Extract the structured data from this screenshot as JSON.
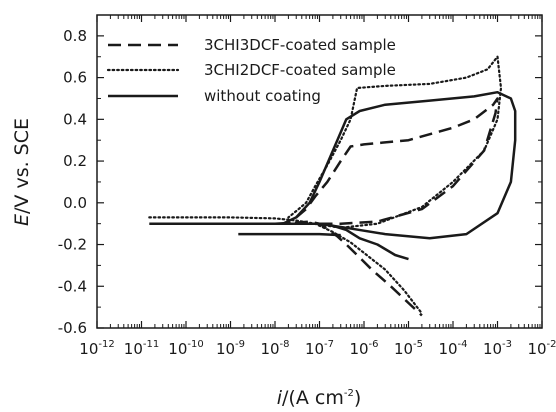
{
  "chart_data": {
    "type": "line",
    "title": "",
    "xlabel": {
      "var": "i",
      "text": "/(A cm",
      "sup": "-2",
      "close": ")"
    },
    "ylabel": {
      "var": "E",
      "text": "/V vs. SCE"
    },
    "x_scale": "log",
    "xlim": [
      1e-12,
      0.01
    ],
    "ylim": [
      -0.6,
      0.9
    ],
    "x_ticks": [
      {
        "base": "10",
        "exp": "-12"
      },
      {
        "base": "10",
        "exp": "-11"
      },
      {
        "base": "10",
        "exp": "-10"
      },
      {
        "base": "10",
        "exp": "-9"
      },
      {
        "base": "10",
        "exp": "-8"
      },
      {
        "base": "10",
        "exp": "-7"
      },
      {
        "base": "10",
        "exp": "-6"
      },
      {
        "base": "10",
        "exp": "-5"
      },
      {
        "base": "10",
        "exp": "-4"
      },
      {
        "base": "10",
        "exp": "-3"
      },
      {
        "base": "10",
        "exp": "-2"
      }
    ],
    "y_ticks": [
      "-0.6",
      "-0.4",
      "-0.2",
      "0.0",
      "0.2",
      "0.4",
      "0.6",
      "0.8"
    ],
    "grid": false,
    "legend_position": "top-left",
    "series": [
      {
        "name": "3CHI3DCF-coated sample",
        "style": "dashed",
        "color": "#1a1a1a",
        "points": [
          [
            2e-11,
            -0.1
          ],
          [
            1e-09,
            -0.1
          ],
          [
            1e-08,
            -0.1
          ],
          [
            3e-08,
            -0.095
          ],
          [
            6e-08,
            -0.09
          ],
          [
            1e-07,
            -0.1
          ],
          [
            1.6e-07,
            -0.13
          ],
          [
            2.5e-07,
            -0.16
          ],
          [
            4e-07,
            -0.2
          ],
          [
            7e-07,
            -0.25
          ],
          [
            1.5e-06,
            -0.32
          ],
          [
            4e-06,
            -0.4
          ],
          [
            1e-05,
            -0.48
          ],
          [
            2e-05,
            -0.54
          ]
        ],
        "return_branch": [
          [
            1e-07,
            -0.1
          ],
          [
            3e-07,
            -0.1
          ],
          [
            2e-06,
            -0.09
          ],
          [
            2e-05,
            -0.03
          ],
          [
            0.0001,
            0.08
          ],
          [
            0.0005,
            0.25
          ],
          [
            0.0009,
            0.43
          ],
          [
            0.001,
            0.5
          ],
          [
            0.0008,
            0.47
          ],
          [
            0.0003,
            0.4
          ],
          [
            0.0001,
            0.36
          ],
          [
            1e-05,
            0.3
          ],
          [
            1e-06,
            0.28
          ],
          [
            5e-07,
            0.27
          ],
          [
            3e-07,
            0.2
          ],
          [
            1.5e-07,
            0.1
          ],
          [
            8e-08,
            0.03
          ],
          [
            5e-08,
            -0.03
          ],
          [
            3e-08,
            -0.07
          ],
          [
            2e-08,
            -0.1
          ]
        ]
      },
      {
        "name": "3CHI2DCF-coated sample",
        "style": "dotted",
        "color": "#1a1a1a",
        "points": [
          [
            1.5e-11,
            -0.07
          ],
          [
            1e-09,
            -0.07
          ],
          [
            1e-08,
            -0.075
          ],
          [
            3e-08,
            -0.085
          ],
          [
            8e-08,
            -0.1
          ],
          [
            2e-07,
            -0.14
          ],
          [
            5e-07,
            -0.19
          ],
          [
            1e-06,
            -0.24
          ],
          [
            3e-06,
            -0.32
          ],
          [
            8e-06,
            -0.42
          ],
          [
            2e-05,
            -0.53
          ]
        ],
        "return_branch": [
          [
            8e-08,
            -0.1
          ],
          [
            3e-07,
            -0.12
          ],
          [
            2e-06,
            -0.1
          ],
          [
            2e-05,
            -0.02
          ],
          [
            0.0001,
            0.1
          ],
          [
            0.0005,
            0.25
          ],
          [
            0.001,
            0.4
          ],
          [
            0.0012,
            0.55
          ],
          [
            0.001,
            0.7
          ],
          [
            0.0006,
            0.64
          ],
          [
            0.0002,
            0.6
          ],
          [
            3e-05,
            0.57
          ],
          [
            3e-06,
            0.56
          ],
          [
            7e-07,
            0.55
          ],
          [
            5e-07,
            0.4
          ],
          [
            3e-07,
            0.3
          ],
          [
            1.5e-07,
            0.18
          ],
          [
            8e-08,
            0.08
          ],
          [
            5e-08,
            0.0
          ],
          [
            3e-08,
            -0.04
          ],
          [
            2e-08,
            -0.07
          ]
        ]
      },
      {
        "name": "without coating",
        "style": "solid",
        "color": "#1a1a1a",
        "points": [
          [
            1.5e-11,
            -0.1
          ],
          [
            1e-09,
            -0.1
          ],
          [
            1e-08,
            -0.1
          ],
          [
            1e-07,
            -0.1
          ],
          [
            2e-07,
            -0.11
          ],
          [
            4e-07,
            -0.13
          ],
          [
            8e-07,
            -0.17
          ],
          [
            2e-06,
            -0.2
          ],
          [
            5e-06,
            -0.25
          ],
          [
            1e-05,
            -0.27
          ]
        ],
        "return_branch": [
          [
            1e-07,
            -0.1
          ],
          [
            4e-07,
            -0.12
          ],
          [
            3e-06,
            -0.15
          ],
          [
            3e-05,
            -0.17
          ],
          [
            0.0002,
            -0.15
          ],
          [
            0.001,
            -0.05
          ],
          [
            0.002,
            0.1
          ],
          [
            0.0025,
            0.3
          ],
          [
            0.0025,
            0.44
          ],
          [
            0.002,
            0.5
          ],
          [
            0.001,
            0.53
          ],
          [
            0.0003,
            0.51
          ],
          [
            3e-05,
            0.49
          ],
          [
            3e-06,
            0.47
          ],
          [
            8e-07,
            0.44
          ],
          [
            4e-07,
            0.4
          ],
          [
            2e-07,
            0.25
          ],
          [
            1e-07,
            0.1
          ],
          [
            6e-08,
            0.0
          ],
          [
            3e-08,
            -0.07
          ],
          [
            1.5e-08,
            -0.1
          ]
        ],
        "extra_branch": [
          [
            1.5e-09,
            -0.15
          ],
          [
            1e-07,
            -0.15
          ],
          [
            3e-07,
            -0.155
          ]
        ]
      }
    ]
  }
}
